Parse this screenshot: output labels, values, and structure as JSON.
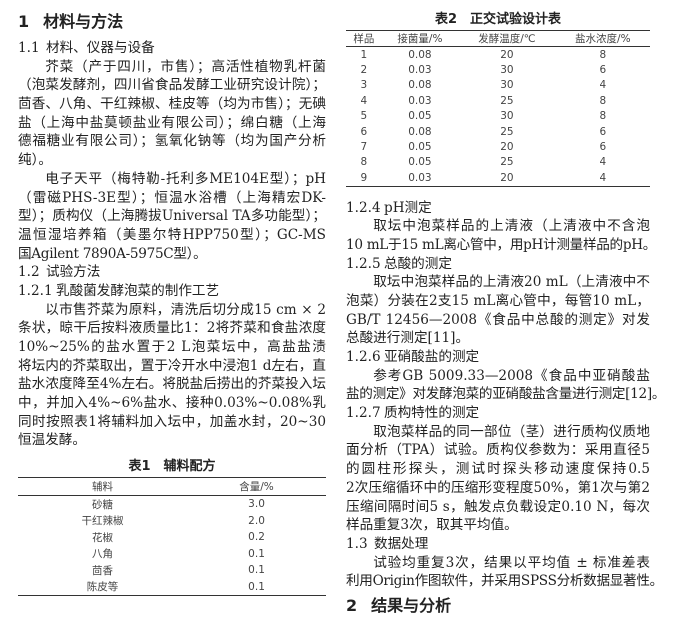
{
  "section_title": {
    "number": "1",
    "text": "材料与方法"
  },
  "left_blocks": [
    {
      "type": "heading",
      "number": "1.1",
      "text": "材料、仪器与设备"
    },
    {
      "type": "paragraph",
      "lines": [
        "芥菜（产于四川，市售）；高活性植物乳杆菌",
        "（泡菜发酵剂，四川省食品发酵工业研究设计院）；",
        "茴香、八角、干红辣椒、桂皮等（均为市售）；无碘",
        "盐（上海中盐莫顿盐业有限公司）；绵白糖（上海",
        "德福糖业有限公司）；氢氧化钠等（均为国产分析",
        "纯）。"
      ]
    },
    {
      "type": "paragraph",
      "lines": [
        "电子天平（梅特勒-托利多ME104E型）；pH计",
        "（雷磁PHS-3E型）；恒温水浴槽（上海精宏DK-8D",
        "型）；质构仪（上海腾拔Universal TA多功能型）；恒",
        "温恒湿培养箱（美墨尔特HPP750型）；GC-MS（美",
        "国Agilent 7890A-5975C型）。"
      ]
    },
    {
      "type": "heading",
      "number": "1.2",
      "text": "试验方法"
    },
    {
      "type": "heading",
      "number": "1.2.1",
      "text": "乳酸菌发酵泡菜的制作工艺"
    },
    {
      "type": "paragraph",
      "lines": [
        "以市售芥菜为原料，清洗后切分成15 cm × 2 cm",
        "条状，晾干后按料液质量比1：2将芥菜和食盐浓度",
        "10%~25%的盐水置于2 L泡菜坛中，高盐盐渍4~8 d后",
        "将坛内的芥菜取出，置于冷开水中浸泡1 d左右，直至",
        "盐水浓度降至4%左右。将脱盐后捞出的芥菜投入坛",
        "中，并加入4%~6%盐水、接种0.03%~0.08%乳酸菌，",
        "同时按照表1将辅料加入坛中，加盖水封，20~30 ℃",
        "恒温发酵。"
      ]
    }
  ],
  "table1": {
    "caption": "表1　辅料配方",
    "headers": [
      "辅料",
      "含量/%"
    ],
    "rows": [
      [
        "砂糖",
        "3.0"
      ],
      [
        "干红辣椒",
        "2.0"
      ],
      [
        "花椒",
        "0.2"
      ],
      [
        "八角",
        "0.1"
      ],
      [
        "茴香",
        "0.1"
      ],
      [
        "陈皮等",
        "0.1"
      ]
    ]
  },
  "table2": {
    "caption": "表2　正交试验设计表",
    "headers": [
      "样品",
      "接菌量/%",
      "发酵温度/℃",
      "盐水浓度/%"
    ],
    "rows": [
      [
        "1",
        "0.08",
        "20",
        "8"
      ],
      [
        "2",
        "0.03",
        "30",
        "6"
      ],
      [
        "3",
        "0.08",
        "30",
        "4"
      ],
      [
        "4",
        "0.03",
        "25",
        "8"
      ],
      [
        "5",
        "0.05",
        "30",
        "8"
      ],
      [
        "6",
        "0.08",
        "25",
        "6"
      ],
      [
        "7",
        "0.05",
        "20",
        "6"
      ],
      [
        "8",
        "0.05",
        "25",
        "4"
      ],
      [
        "9",
        "0.03",
        "20",
        "4"
      ]
    ]
  },
  "right_blocks": [
    {
      "type": "heading",
      "number": "1.2.4",
      "text": "pH测定"
    },
    {
      "type": "paragraph",
      "lines": [
        "取坛中泡菜样品的上清液（上清液中不含泡菜）",
        "10 mL于15 mL离心管中，用pH计测量样品的pH。"
      ]
    },
    {
      "type": "heading",
      "number": "1.2.5",
      "text": "总酸的测定"
    },
    {
      "type": "paragraph",
      "lines": [
        "取坛中泡菜样品的上清液20 mL（上清液中不含",
        "泡菜）分装在2支15 mL离心管中，每管10 mL，参考",
        "GB/T 12456—2008《食品中总酸的测定》对发酵泡菜",
        "总酸进行测定[11]。"
      ]
    },
    {
      "type": "heading",
      "number": "1.2.6",
      "text": "亚硝酸盐的测定"
    },
    {
      "type": "paragraph",
      "lines": [
        "参考GB 5009.33—2008《食品中亚硝酸盐与硝酸",
        "盐的测定》对发酵泡菜的亚硝酸盐含量进行测定[12]。"
      ]
    },
    {
      "type": "heading",
      "number": "1.2.7",
      "text": "质构特性的测定"
    },
    {
      "type": "paragraph",
      "lines": [
        "取泡菜样品的同一部位（茎）进行质构仪质地多",
        "面分析（TPA）试验。质构仪参数为：采用直径5 mm",
        "的圆柱形探头，测试时探头移动速度保持0.5 mm/s，",
        "2次压缩循环中的压缩形变程度50%，第1次与第2次",
        "压缩间隔时间5 s，触发点负载设定0.10 N，每次泡菜",
        "样品重复3次，取其平均值。"
      ]
    },
    {
      "type": "heading",
      "number": "1.3",
      "text": "数据处理"
    },
    {
      "type": "paragraph",
      "lines": [
        "试验均重复3次，结果以平均值 ± 标准差表示。",
        "利用Origin作图软件，并采用SPSS分析数据显著性。"
      ]
    }
  ],
  "next_section_title": {
    "number": "2",
    "text": "结果与分析"
  }
}
